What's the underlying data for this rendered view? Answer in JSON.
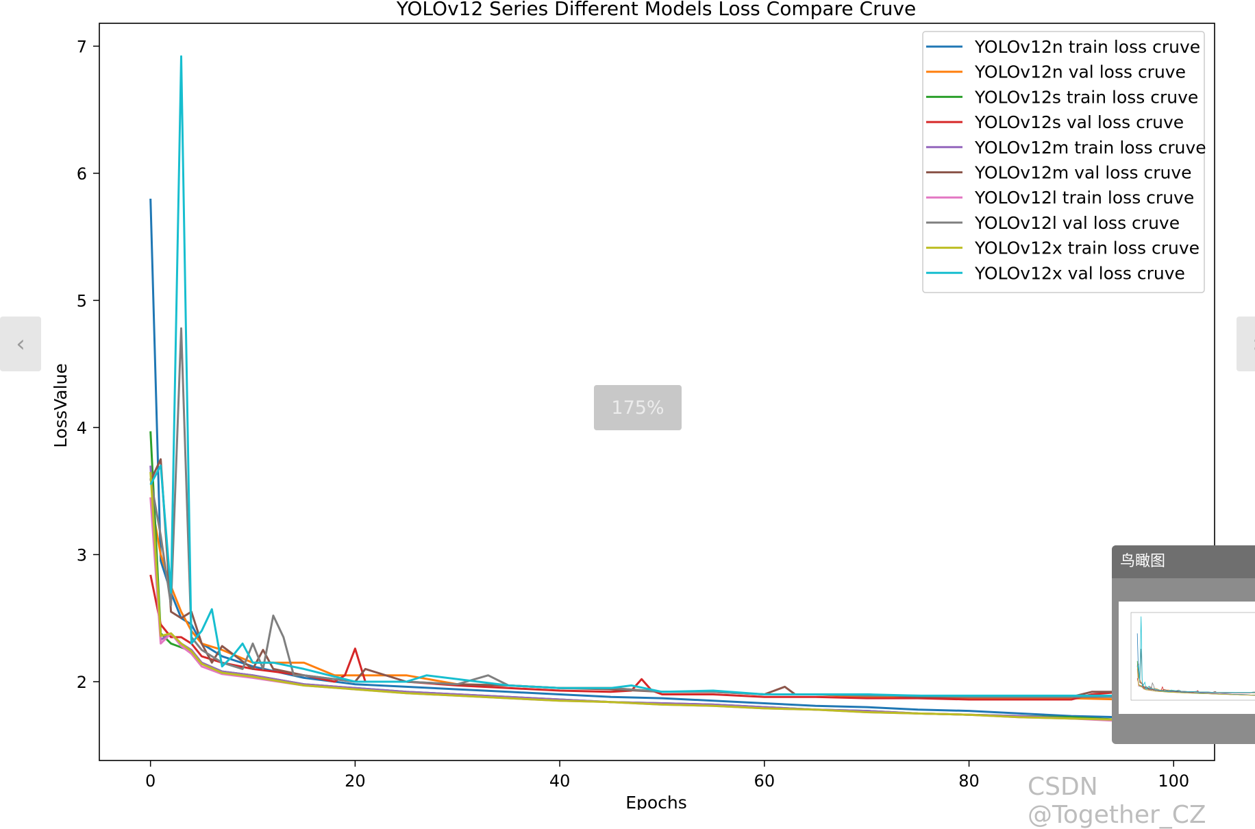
{
  "viewer": {
    "zoom_label": "175%",
    "prev_icon": "chevron-left-icon",
    "next_icon": "chevron-right-icon",
    "overview_title": "鸟瞰图",
    "watermark": "CSDN @Together_CZ"
  },
  "chart_data": {
    "type": "line",
    "title": "YOLOv12 Series Different Models Loss Compare Cruve",
    "xlabel": "Epochs",
    "ylabel": "LossValue",
    "xlim": [
      -5,
      104
    ],
    "ylim": [
      1.38,
      7.18
    ],
    "xticks": [
      0,
      20,
      40,
      60,
      80,
      100
    ],
    "yticks": [
      2,
      3,
      4,
      5,
      6,
      7
    ],
    "legend_position": "top-right",
    "grid": false,
    "series": [
      {
        "name": "YOLOv12n train loss cruve",
        "color": "#1f77b4",
        "points": [
          [
            0,
            5.8
          ],
          [
            1,
            2.95
          ],
          [
            2,
            2.7
          ],
          [
            3,
            2.5
          ],
          [
            4,
            2.45
          ],
          [
            5,
            2.3
          ],
          [
            7,
            2.2
          ],
          [
            10,
            2.12
          ],
          [
            15,
            2.03
          ],
          [
            20,
            1.98
          ],
          [
            25,
            1.96
          ],
          [
            30,
            1.94
          ],
          [
            35,
            1.92
          ],
          [
            40,
            1.9
          ],
          [
            45,
            1.88
          ],
          [
            50,
            1.87
          ],
          [
            55,
            1.85
          ],
          [
            60,
            1.83
          ],
          [
            65,
            1.81
          ],
          [
            70,
            1.8
          ],
          [
            75,
            1.78
          ],
          [
            80,
            1.77
          ],
          [
            85,
            1.75
          ],
          [
            90,
            1.73
          ],
          [
            95,
            1.72
          ],
          [
            99,
            1.7
          ]
        ]
      },
      {
        "name": "YOLOv12n val loss cruve",
        "color": "#ff7f0e",
        "points": [
          [
            0,
            3.45
          ],
          [
            1,
            3.0
          ],
          [
            2,
            2.75
          ],
          [
            3,
            2.55
          ],
          [
            4,
            2.4
          ],
          [
            5,
            2.3
          ],
          [
            7,
            2.25
          ],
          [
            10,
            2.15
          ],
          [
            15,
            2.15
          ],
          [
            18,
            2.05
          ],
          [
            20,
            2.05
          ],
          [
            25,
            2.05
          ],
          [
            30,
            1.98
          ],
          [
            35,
            1.97
          ],
          [
            40,
            1.95
          ],
          [
            45,
            1.95
          ],
          [
            50,
            1.92
          ],
          [
            55,
            1.92
          ],
          [
            60,
            1.9
          ],
          [
            65,
            1.9
          ],
          [
            70,
            1.88
          ],
          [
            75,
            1.88
          ],
          [
            80,
            1.87
          ],
          [
            85,
            1.87
          ],
          [
            90,
            1.87
          ],
          [
            95,
            1.86
          ],
          [
            99,
            1.86
          ]
        ]
      },
      {
        "name": "YOLOv12s train loss cruve",
        "color": "#2ca02c",
        "points": [
          [
            0,
            3.97
          ],
          [
            1,
            2.38
          ],
          [
            2,
            2.3
          ],
          [
            3,
            2.27
          ],
          [
            4,
            2.24
          ],
          [
            5,
            2.15
          ],
          [
            7,
            2.08
          ],
          [
            10,
            2.05
          ],
          [
            15,
            1.98
          ],
          [
            20,
            1.95
          ],
          [
            25,
            1.92
          ],
          [
            30,
            1.9
          ],
          [
            35,
            1.88
          ],
          [
            40,
            1.86
          ],
          [
            45,
            1.84
          ],
          [
            50,
            1.83
          ],
          [
            55,
            1.82
          ],
          [
            60,
            1.8
          ],
          [
            65,
            1.78
          ],
          [
            70,
            1.77
          ],
          [
            75,
            1.75
          ],
          [
            80,
            1.74
          ],
          [
            85,
            1.73
          ],
          [
            90,
            1.72
          ],
          [
            95,
            1.7
          ],
          [
            99,
            1.69
          ]
        ]
      },
      {
        "name": "YOLOv12s val loss cruve",
        "color": "#d62728",
        "points": [
          [
            0,
            2.84
          ],
          [
            1,
            2.45
          ],
          [
            2,
            2.35
          ],
          [
            3,
            2.35
          ],
          [
            4,
            2.3
          ],
          [
            5,
            2.2
          ],
          [
            7,
            2.15
          ],
          [
            10,
            2.1
          ],
          [
            15,
            2.05
          ],
          [
            18,
            2.0
          ],
          [
            19,
            2.05
          ],
          [
            20,
            2.26
          ],
          [
            21,
            2.0
          ],
          [
            25,
            2.0
          ],
          [
            30,
            1.97
          ],
          [
            35,
            1.95
          ],
          [
            40,
            1.93
          ],
          [
            45,
            1.92
          ],
          [
            47,
            1.93
          ],
          [
            48,
            2.02
          ],
          [
            49,
            1.93
          ],
          [
            50,
            1.9
          ],
          [
            55,
            1.9
          ],
          [
            60,
            1.88
          ],
          [
            65,
            1.88
          ],
          [
            70,
            1.87
          ],
          [
            75,
            1.87
          ],
          [
            80,
            1.86
          ],
          [
            85,
            1.86
          ],
          [
            90,
            1.86
          ],
          [
            92,
            1.9
          ],
          [
            95,
            1.92
          ],
          [
            99,
            1.9
          ]
        ]
      },
      {
        "name": "YOLOv12m train loss cruve",
        "color": "#9467bd",
        "points": [
          [
            0,
            3.7
          ],
          [
            1,
            2.33
          ],
          [
            2,
            2.38
          ],
          [
            3,
            2.3
          ],
          [
            4,
            2.25
          ],
          [
            5,
            2.15
          ],
          [
            7,
            2.08
          ],
          [
            10,
            2.05
          ],
          [
            15,
            1.98
          ],
          [
            20,
            1.95
          ],
          [
            25,
            1.92
          ],
          [
            30,
            1.9
          ],
          [
            35,
            1.88
          ],
          [
            40,
            1.86
          ],
          [
            45,
            1.84
          ],
          [
            50,
            1.83
          ],
          [
            55,
            1.82
          ],
          [
            60,
            1.8
          ],
          [
            65,
            1.78
          ],
          [
            70,
            1.77
          ],
          [
            75,
            1.75
          ],
          [
            80,
            1.74
          ],
          [
            85,
            1.73
          ],
          [
            90,
            1.71
          ],
          [
            95,
            1.7
          ],
          [
            99,
            1.67
          ]
        ]
      },
      {
        "name": "YOLOv12m val loss cruve",
        "color": "#8c564b",
        "points": [
          [
            0,
            3.58
          ],
          [
            1,
            3.75
          ],
          [
            2,
            2.55
          ],
          [
            3,
            2.5
          ],
          [
            4,
            2.55
          ],
          [
            5,
            2.3
          ],
          [
            6,
            2.15
          ],
          [
            7,
            2.28
          ],
          [
            10,
            2.1
          ],
          [
            11,
            2.25
          ],
          [
            12,
            2.1
          ],
          [
            15,
            2.05
          ],
          [
            20,
            2.0
          ],
          [
            21,
            2.1
          ],
          [
            25,
            2.0
          ],
          [
            30,
            1.98
          ],
          [
            35,
            1.97
          ],
          [
            40,
            1.95
          ],
          [
            45,
            1.94
          ],
          [
            50,
            1.92
          ],
          [
            55,
            1.92
          ],
          [
            60,
            1.9
          ],
          [
            62,
            1.96
          ],
          [
            63,
            1.9
          ],
          [
            65,
            1.9
          ],
          [
            70,
            1.9
          ],
          [
            75,
            1.88
          ],
          [
            80,
            1.88
          ],
          [
            85,
            1.88
          ],
          [
            90,
            1.88
          ],
          [
            92,
            1.92
          ],
          [
            95,
            1.92
          ],
          [
            99,
            1.9
          ]
        ]
      },
      {
        "name": "YOLOv12l train loss cruve",
        "color": "#e377c2",
        "points": [
          [
            0,
            3.45
          ],
          [
            1,
            2.3
          ],
          [
            2,
            2.38
          ],
          [
            3,
            2.28
          ],
          [
            4,
            2.22
          ],
          [
            5,
            2.12
          ],
          [
            7,
            2.06
          ],
          [
            10,
            2.03
          ],
          [
            15,
            1.97
          ],
          [
            20,
            1.94
          ],
          [
            25,
            1.91
          ],
          [
            30,
            1.89
          ],
          [
            35,
            1.87
          ],
          [
            40,
            1.85
          ],
          [
            45,
            1.84
          ],
          [
            50,
            1.82
          ],
          [
            55,
            1.81
          ],
          [
            60,
            1.79
          ],
          [
            65,
            1.78
          ],
          [
            70,
            1.76
          ],
          [
            75,
            1.75
          ],
          [
            80,
            1.74
          ],
          [
            85,
            1.72
          ],
          [
            90,
            1.71
          ],
          [
            95,
            1.69
          ],
          [
            99,
            1.67
          ]
        ]
      },
      {
        "name": "YOLOv12l val loss cruve",
        "color": "#7f7f7f",
        "points": [
          [
            0,
            3.6
          ],
          [
            1,
            3.15
          ],
          [
            2,
            2.6
          ],
          [
            3,
            4.78
          ],
          [
            4,
            2.35
          ],
          [
            5,
            2.25
          ],
          [
            6,
            2.2
          ],
          [
            7,
            2.15
          ],
          [
            9,
            2.1
          ],
          [
            10,
            2.3
          ],
          [
            11,
            2.1
          ],
          [
            12,
            2.52
          ],
          [
            13,
            2.35
          ],
          [
            14,
            2.05
          ],
          [
            15,
            2.05
          ],
          [
            20,
            2.0
          ],
          [
            25,
            2.0
          ],
          [
            30,
            1.98
          ],
          [
            33,
            2.05
          ],
          [
            35,
            1.97
          ],
          [
            40,
            1.95
          ],
          [
            45,
            1.95
          ],
          [
            50,
            1.92
          ],
          [
            55,
            1.92
          ],
          [
            60,
            1.9
          ],
          [
            65,
            1.9
          ],
          [
            70,
            1.89
          ],
          [
            75,
            1.89
          ],
          [
            80,
            1.88
          ],
          [
            85,
            1.88
          ],
          [
            90,
            1.88
          ],
          [
            95,
            1.88
          ],
          [
            99,
            1.88
          ]
        ]
      },
      {
        "name": "YOLOv12x train loss cruve",
        "color": "#bcbd22",
        "points": [
          [
            0,
            3.65
          ],
          [
            1,
            2.36
          ],
          [
            2,
            2.38
          ],
          [
            3,
            2.3
          ],
          [
            4,
            2.24
          ],
          [
            5,
            2.14
          ],
          [
            7,
            2.07
          ],
          [
            10,
            2.04
          ],
          [
            15,
            1.97
          ],
          [
            20,
            1.94
          ],
          [
            25,
            1.91
          ],
          [
            30,
            1.89
          ],
          [
            35,
            1.87
          ],
          [
            40,
            1.85
          ],
          [
            45,
            1.84
          ],
          [
            50,
            1.82
          ],
          [
            55,
            1.81
          ],
          [
            60,
            1.79
          ],
          [
            65,
            1.78
          ],
          [
            70,
            1.76
          ],
          [
            75,
            1.75
          ],
          [
            80,
            1.74
          ],
          [
            85,
            1.72
          ],
          [
            90,
            1.71
          ],
          [
            95,
            1.7
          ],
          [
            99,
            1.68
          ]
        ]
      },
      {
        "name": "YOLOv12x val loss cruve",
        "color": "#17becf",
        "points": [
          [
            0,
            3.55
          ],
          [
            1,
            3.7
          ],
          [
            2,
            2.7
          ],
          [
            3,
            6.92
          ],
          [
            4,
            2.3
          ],
          [
            5,
            2.4
          ],
          [
            6,
            2.57
          ],
          [
            7,
            2.12
          ],
          [
            8,
            2.2
          ],
          [
            9,
            2.3
          ],
          [
            10,
            2.15
          ],
          [
            12,
            2.15
          ],
          [
            15,
            2.1
          ],
          [
            20,
            2.0
          ],
          [
            25,
            2.0
          ],
          [
            27,
            2.05
          ],
          [
            30,
            2.02
          ],
          [
            35,
            1.97
          ],
          [
            40,
            1.95
          ],
          [
            45,
            1.95
          ],
          [
            47,
            1.97
          ],
          [
            50,
            1.92
          ],
          [
            55,
            1.93
          ],
          [
            60,
            1.9
          ],
          [
            65,
            1.9
          ],
          [
            70,
            1.9
          ],
          [
            75,
            1.89
          ],
          [
            80,
            1.89
          ],
          [
            85,
            1.89
          ],
          [
            90,
            1.89
          ],
          [
            95,
            1.89
          ],
          [
            99,
            1.89
          ]
        ]
      }
    ]
  }
}
